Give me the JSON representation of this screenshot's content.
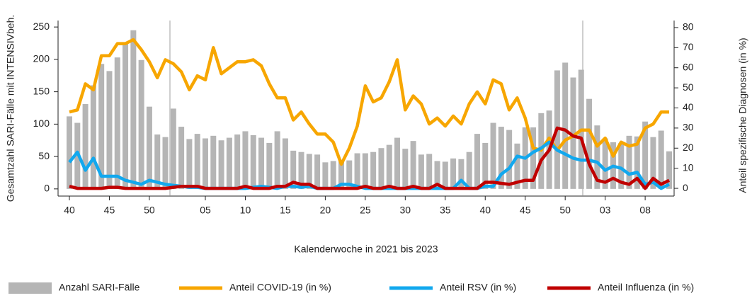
{
  "chart_data": {
    "type": "combo",
    "y_label": "Gesamtzahl SARI-Fälle mit INTENSIVbeh.",
    "y2_label": "Anteil spezifische Diagnosen (in %)",
    "x_label": "Kalenderwoche in 2021 bis 2023",
    "categories": [
      "40",
      null,
      null,
      null,
      null,
      "45",
      null,
      null,
      null,
      null,
      "50",
      null,
      null,
      null,
      null,
      null,
      null,
      "05",
      null,
      null,
      null,
      null,
      "10",
      null,
      null,
      null,
      null,
      "15",
      null,
      null,
      null,
      null,
      "20",
      null,
      null,
      null,
      null,
      "25",
      null,
      null,
      null,
      null,
      "30",
      null,
      null,
      null,
      null,
      "35",
      null,
      null,
      null,
      null,
      "40",
      null,
      null,
      null,
      null,
      "45",
      null,
      null,
      null,
      null,
      "50",
      null,
      null,
      null,
      null,
      "03",
      null,
      null,
      null,
      null,
      "08",
      null,
      null,
      null
    ],
    "ylim": [
      -10,
      260
    ],
    "yticks": [
      0,
      50,
      100,
      150,
      200,
      250
    ],
    "y2lim": [
      -3.5,
      83.5
    ],
    "y2ticks": [
      0,
      10,
      20,
      30,
      40,
      50,
      60,
      70,
      80
    ],
    "series": [
      {
        "name": "Anzahl SARI-Fälle",
        "type": "bar",
        "color": "#b5b5b5",
        "values": [
          112,
          102,
          131,
          160,
          193,
          182,
          203,
          226,
          245,
          199,
          127,
          84,
          80,
          124,
          96,
          77,
          85,
          78,
          82,
          75,
          79,
          84,
          89,
          83,
          79,
          71,
          89,
          78,
          59,
          57,
          54,
          53,
          41,
          43,
          45,
          44,
          55,
          55,
          57,
          63,
          68,
          79,
          62,
          74,
          53,
          54,
          43,
          42,
          47,
          46,
          57,
          85,
          71,
          102,
          96,
          91,
          70,
          95,
          95,
          117,
          121,
          183,
          195,
          172,
          184,
          139,
          98,
          78,
          72,
          71,
          82,
          81,
          104,
          80,
          90,
          58
        ]
      },
      {
        "name": "Anteil COVID-19 (in %)",
        "type": "line",
        "axis": "y2",
        "color": "#f7a600",
        "values": [
          38,
          39,
          52,
          49,
          66,
          66,
          72,
          72,
          74,
          69,
          63,
          55,
          64,
          62,
          58,
          49,
          56,
          54,
          70,
          57,
          60,
          63,
          63,
          64,
          61,
          52,
          45,
          45,
          34,
          38,
          32,
          27,
          27,
          23,
          12,
          20,
          31,
          51,
          43,
          45,
          53,
          64,
          39,
          46,
          42,
          32,
          35,
          31,
          36,
          32,
          42,
          48,
          42,
          54,
          52,
          39,
          45,
          35,
          20,
          19,
          25,
          19,
          24,
          26,
          29,
          29,
          21,
          25,
          16,
          23,
          21,
          22,
          30,
          32,
          38,
          38
        ]
      },
      {
        "name": "Anteil RSV (in %)",
        "type": "line",
        "axis": "y2",
        "color": "#12a8ee",
        "values": [
          13,
          18,
          9,
          15,
          6,
          6,
          6,
          4,
          3,
          2,
          4,
          3,
          2,
          1.5,
          1,
          0.5,
          0.5,
          0,
          0,
          0,
          0,
          0,
          0,
          0.5,
          1,
          0.5,
          0,
          1,
          1,
          0.5,
          1,
          0,
          0,
          0,
          2,
          2,
          1,
          0,
          0,
          0,
          0,
          0,
          0,
          0,
          0,
          0,
          0,
          0,
          0,
          4,
          0,
          0,
          1,
          1,
          7,
          10,
          16,
          15,
          18,
          20,
          23,
          19,
          17,
          15,
          14,
          14,
          13,
          9,
          11,
          10,
          7,
          8,
          2,
          3,
          0,
          2
        ]
      },
      {
        "name": "Anteil Influenza (in %)",
        "type": "line",
        "axis": "y2",
        "color": "#c00000",
        "values": [
          1,
          0,
          0,
          0,
          0,
          0.5,
          0.5,
          0,
          0,
          0,
          0,
          0,
          0,
          0.5,
          1,
          1,
          1,
          0,
          0,
          0,
          0,
          0,
          1,
          0,
          0,
          0,
          1,
          1,
          3,
          2,
          2,
          0,
          0,
          0,
          0,
          0,
          0,
          1,
          0,
          0,
          1,
          0,
          0,
          1,
          0,
          0,
          2,
          0,
          0,
          0,
          0,
          0,
          3,
          3,
          2.5,
          2,
          3,
          4,
          4,
          14,
          19,
          30,
          29,
          26,
          25,
          12,
          4,
          3,
          5,
          3,
          2,
          5,
          0,
          5,
          2,
          4
        ]
      }
    ]
  }
}
